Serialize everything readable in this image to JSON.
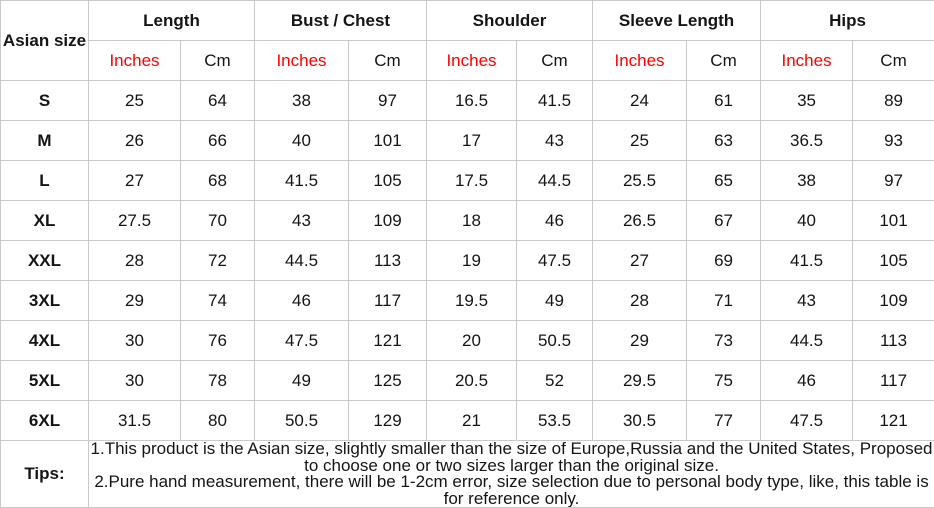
{
  "colors": {
    "accent_red": "#fe0000",
    "text_dark": "#151515",
    "header_bg": "#f2f2f2",
    "border": "#c9c9c9"
  },
  "table": {
    "corner_header": "Asian size",
    "groups": [
      {
        "label": "Length"
      },
      {
        "label": "Bust / Chest"
      },
      {
        "label": "Shoulder"
      },
      {
        "label": "Sleeve Length"
      },
      {
        "label": "Hips"
      }
    ],
    "unit_headers": {
      "inches": "Inches",
      "cm": "Cm"
    },
    "rows": [
      {
        "size": "S",
        "values": [
          "25",
          "64",
          "38",
          "97",
          "16.5",
          "41.5",
          "24",
          "61",
          "35",
          "89"
        ]
      },
      {
        "size": "M",
        "values": [
          "26",
          "66",
          "40",
          "101",
          "17",
          "43",
          "25",
          "63",
          "36.5",
          "93"
        ]
      },
      {
        "size": "L",
        "values": [
          "27",
          "68",
          "41.5",
          "105",
          "17.5",
          "44.5",
          "25.5",
          "65",
          "38",
          "97"
        ]
      },
      {
        "size": "XL",
        "values": [
          "27.5",
          "70",
          "43",
          "109",
          "18",
          "46",
          "26.5",
          "67",
          "40",
          "101"
        ]
      },
      {
        "size": "XXL",
        "values": [
          "28",
          "72",
          "44.5",
          "113",
          "19",
          "47.5",
          "27",
          "69",
          "41.5",
          "105"
        ]
      },
      {
        "size": "3XL",
        "values": [
          "29",
          "74",
          "46",
          "117",
          "19.5",
          "49",
          "28",
          "71",
          "43",
          "109"
        ]
      },
      {
        "size": "4XL",
        "values": [
          "30",
          "76",
          "47.5",
          "121",
          "20",
          "50.5",
          "29",
          "73",
          "44.5",
          "113"
        ]
      },
      {
        "size": "5XL",
        "values": [
          "30",
          "78",
          "49",
          "125",
          "20.5",
          "52",
          "29.5",
          "75",
          "46",
          "117"
        ]
      },
      {
        "size": "6XL",
        "values": [
          "31.5",
          "80",
          "50.5",
          "129",
          "21",
          "53.5",
          "30.5",
          "77",
          "47.5",
          "121"
        ]
      }
    ],
    "tips": {
      "label": "Tips:",
      "lines": [
        "1.This product is the Asian size, slightly smaller than the size of Europe,Russia and the United States, Proposed to choose one or two sizes larger than the original size.",
        "2.Pure hand measurement, there will be 1-2cm error, size selection due to personal body type, like, this table is for reference only."
      ]
    }
  },
  "chart_data": {
    "type": "table",
    "title": "Asian size chart",
    "column_groups": [
      "Length",
      "Bust / Chest",
      "Shoulder",
      "Sleeve Length",
      "Hips"
    ],
    "unit_columns_per_group": [
      "Inches",
      "Cm"
    ],
    "row_labels": [
      "S",
      "M",
      "L",
      "XL",
      "XXL",
      "3XL",
      "4XL",
      "5XL",
      "6XL"
    ],
    "rows": [
      [
        25,
        64,
        38,
        97,
        16.5,
        41.5,
        24,
        61,
        35,
        89
      ],
      [
        26,
        66,
        40,
        101,
        17,
        43,
        25,
        63,
        36.5,
        93
      ],
      [
        27,
        68,
        41.5,
        105,
        17.5,
        44.5,
        25.5,
        65,
        38,
        97
      ],
      [
        27.5,
        70,
        43,
        109,
        18,
        46,
        26.5,
        67,
        40,
        101
      ],
      [
        28,
        72,
        44.5,
        113,
        19,
        47.5,
        27,
        69,
        41.5,
        105
      ],
      [
        29,
        74,
        46,
        117,
        19.5,
        49,
        28,
        71,
        43,
        109
      ],
      [
        30,
        76,
        47.5,
        121,
        20,
        50.5,
        29,
        73,
        44.5,
        113
      ],
      [
        30,
        78,
        49,
        125,
        20.5,
        52,
        29.5,
        75,
        46,
        117
      ],
      [
        31.5,
        80,
        50.5,
        129,
        21,
        53.5,
        30.5,
        77,
        47.5,
        121
      ]
    ],
    "notes": "Tips: 1.This product is the Asian size, slightly smaller than the size of Europe,Russia and the United States, Proposed to choose one or two sizes larger than the original size. 2.Pure hand measurement, there will be 1-2cm error, size selection due to personal body type, like, this table is for reference only."
  }
}
